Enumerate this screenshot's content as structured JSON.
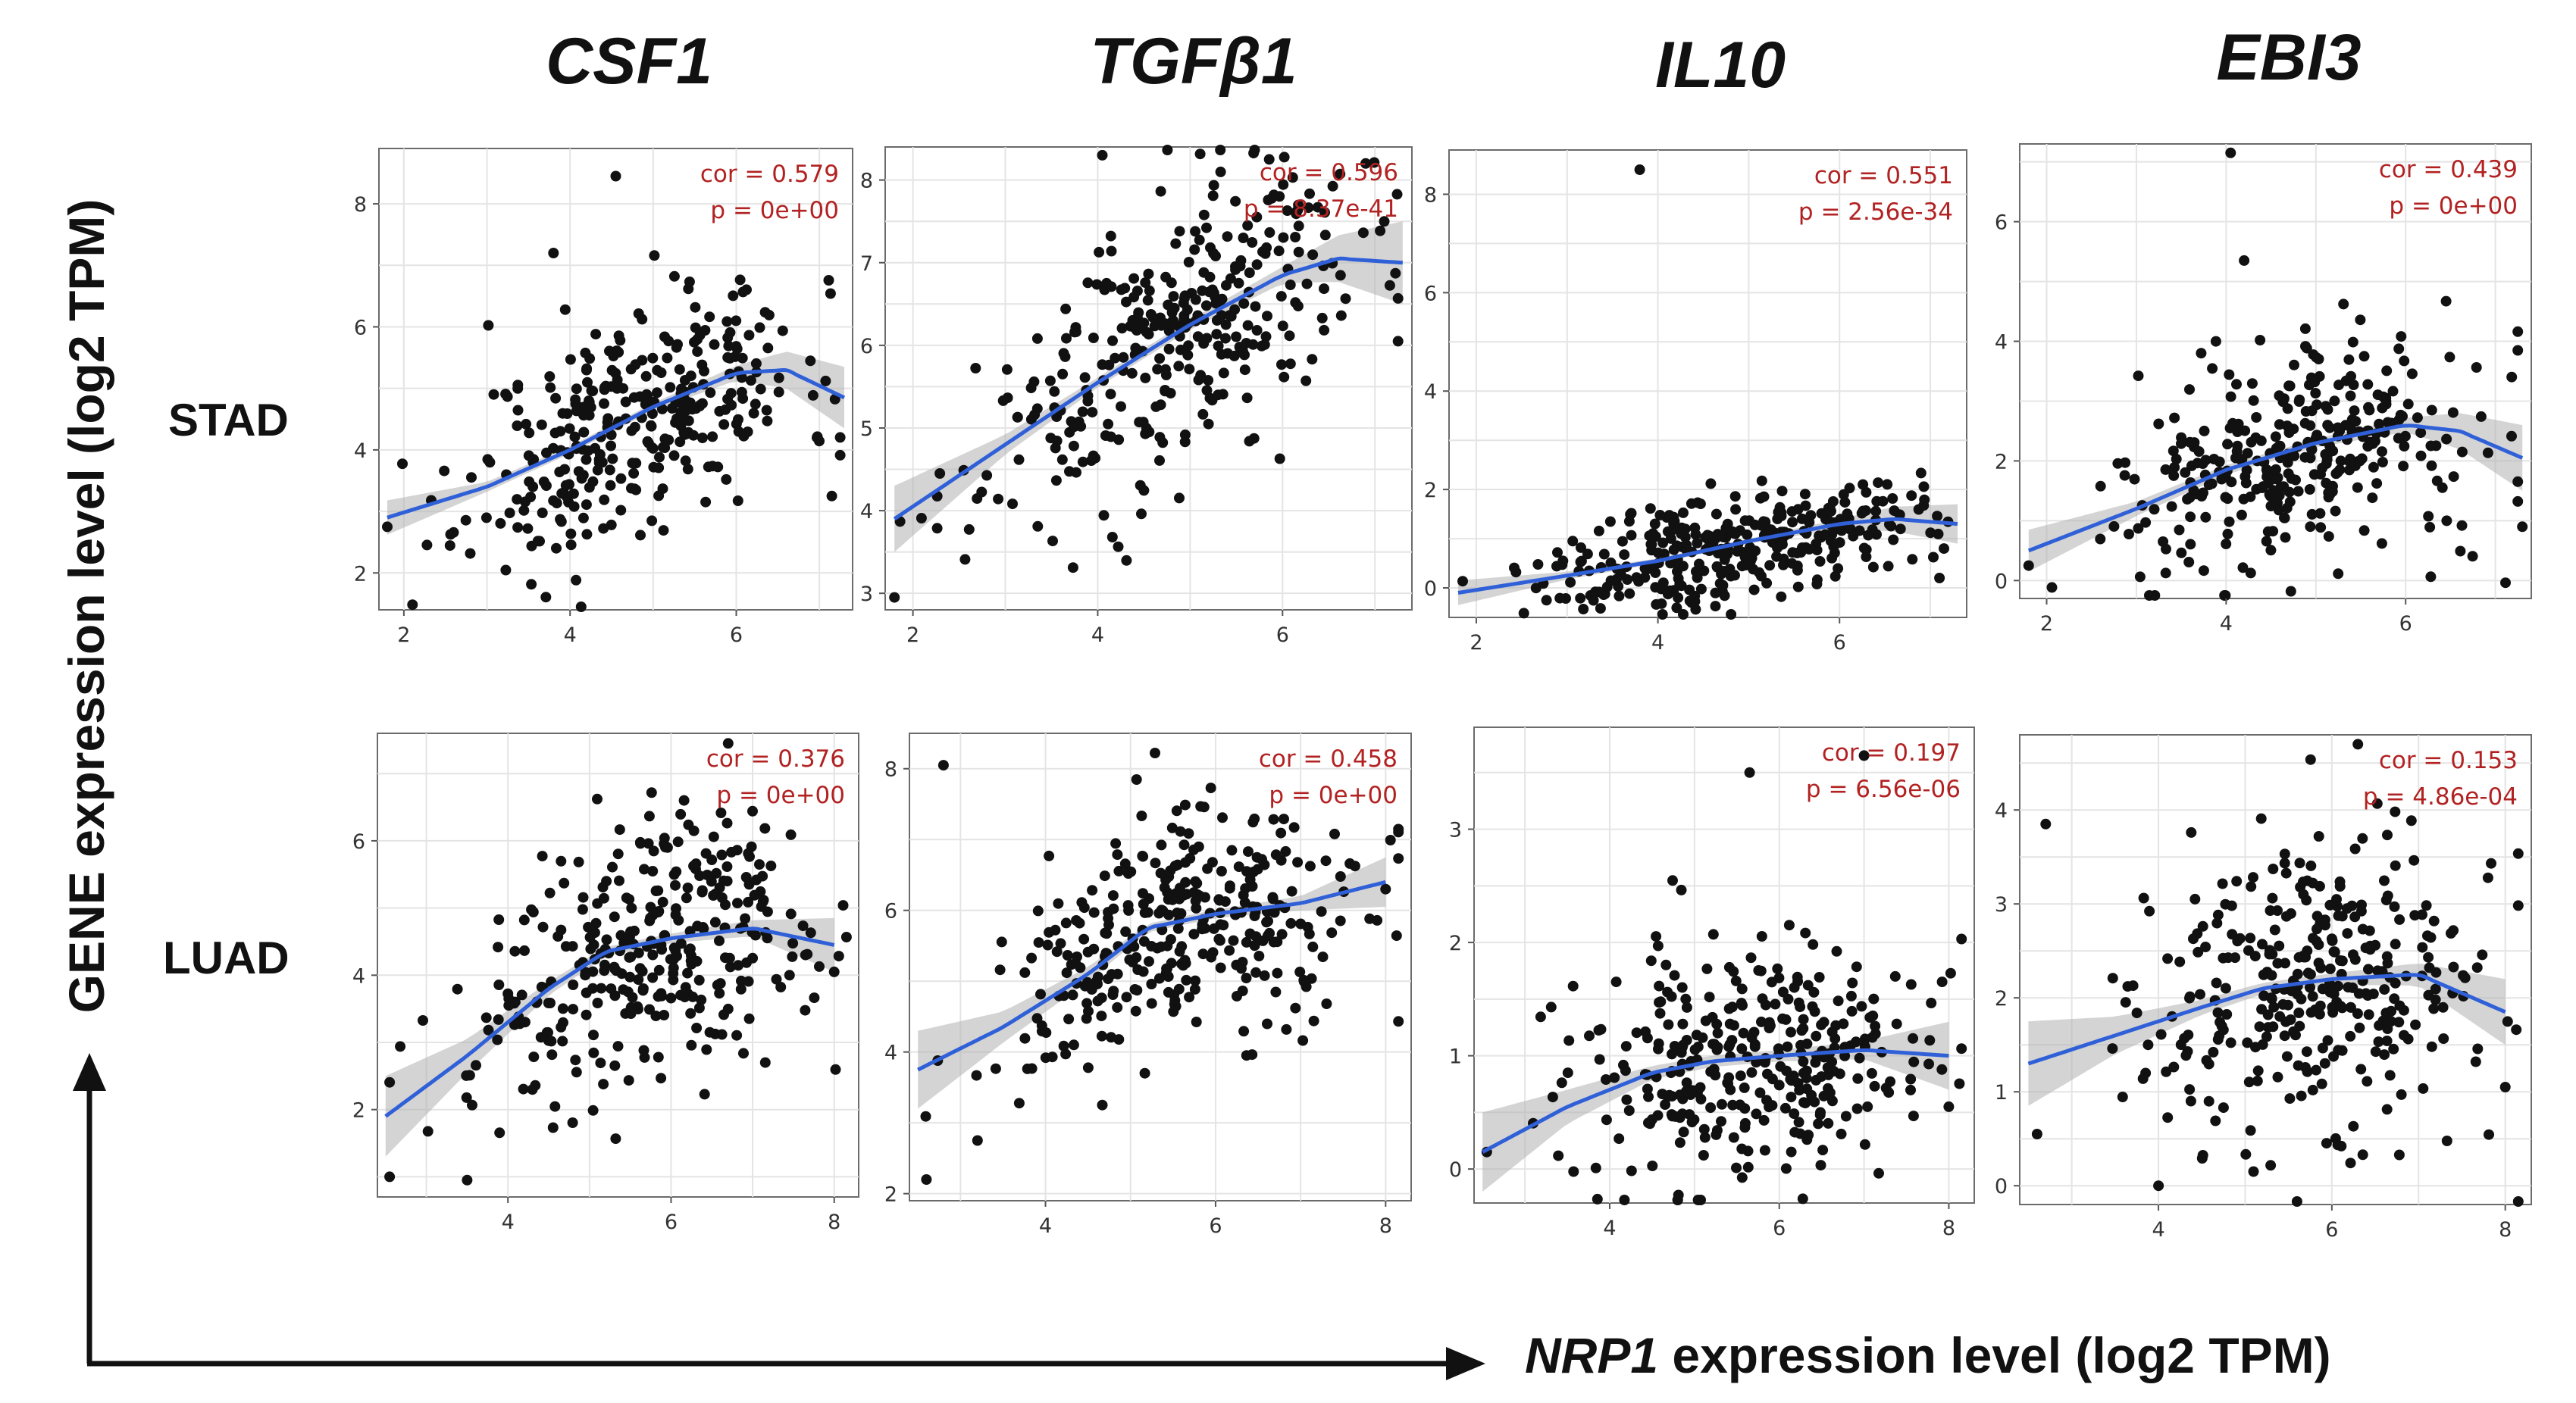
{
  "figure": {
    "x_axis_title_gene": "NRP1",
    "x_axis_title_rest": " expression level (log2 TPM)",
    "y_axis_title": "GENE expression level (log2 TPM)",
    "genes": [
      "CSF1",
      "TGFβ1",
      "IL10",
      "EBI3"
    ],
    "rows": [
      "STAD",
      "LUAD"
    ]
  },
  "chart_data": [
    {
      "type": "scatter",
      "title": "CSF1",
      "row": "STAD",
      "xlim": [
        1.7,
        7.4
      ],
      "ylim": [
        1.4,
        8.9
      ],
      "xticks": [
        2,
        4,
        6
      ],
      "yticks": [
        2,
        4,
        6,
        8
      ],
      "cor_text": "cor = 0.579",
      "p_text": "p = 0e+00",
      "cor": 0.579,
      "x_center": 4.8,
      "x_sd": 1.0,
      "noise": 0.9,
      "n": 330,
      "seed": 11,
      "fit_x": [
        1.8,
        3.0,
        4.0,
        5.0,
        6.0,
        6.6,
        7.3
      ],
      "fit_y": [
        2.9,
        3.4,
        4.0,
        4.7,
        5.25,
        5.3,
        4.85
      ],
      "band": [
        0.28,
        0.08,
        0.06,
        0.06,
        0.12,
        0.3,
        0.5
      ],
      "outliers": [
        [
          4.55,
          8.45
        ],
        [
          3.8,
          7.2
        ],
        [
          1.8,
          2.75
        ],
        [
          7.15,
          3.25
        ]
      ]
    },
    {
      "type": "scatter",
      "title": "TGFβ1",
      "row": "STAD",
      "xlim": [
        1.7,
        7.4
      ],
      "ylim": [
        2.8,
        8.4
      ],
      "xticks": [
        2,
        4,
        6
      ],
      "yticks": [
        3,
        4,
        5,
        6,
        7,
        8
      ],
      "cor_text": "cor = 0.596",
      "p_text": "p = 8.37e-41",
      "cor": 0.596,
      "x_center": 4.8,
      "x_sd": 1.0,
      "noise": 0.8,
      "n": 330,
      "seed": 23,
      "fit_x": [
        1.8,
        3.0,
        4.0,
        5.0,
        6.0,
        6.6,
        7.3
      ],
      "fit_y": [
        3.9,
        4.8,
        5.55,
        6.25,
        6.85,
        7.05,
        7.0
      ],
      "band": [
        0.4,
        0.12,
        0.06,
        0.06,
        0.1,
        0.28,
        0.5
      ],
      "outliers": [
        [
          4.05,
          8.3
        ],
        [
          1.8,
          2.95
        ],
        [
          7.25,
          6.05
        ],
        [
          6.9,
          8.2
        ]
      ]
    },
    {
      "type": "scatter",
      "title": "IL10",
      "row": "STAD",
      "xlim": [
        1.7,
        7.4
      ],
      "ylim": [
        -0.6,
        8.9
      ],
      "xticks": [
        2,
        4,
        6
      ],
      "yticks": [
        0,
        2,
        4,
        6,
        8
      ],
      "cor_text": "cor = 0.551",
      "p_text": "p = 2.56e-34",
      "cor": 0.551,
      "x_center": 4.8,
      "x_sd": 1.0,
      "noise": 0.55,
      "n": 330,
      "seed": 37,
      "fit_x": [
        1.8,
        3.0,
        4.0,
        5.0,
        6.0,
        6.6,
        7.3
      ],
      "fit_y": [
        -0.1,
        0.25,
        0.55,
        0.95,
        1.3,
        1.4,
        1.3
      ],
      "band": [
        0.25,
        0.08,
        0.05,
        0.05,
        0.1,
        0.25,
        0.4
      ],
      "outliers": [
        [
          3.8,
          8.5
        ],
        [
          7.15,
          0.8
        ],
        [
          7.1,
          0.2
        ]
      ]
    },
    {
      "type": "scatter",
      "title": "EBI3",
      "row": "STAD",
      "xlim": [
        1.7,
        7.4
      ],
      "ylim": [
        -0.3,
        7.3
      ],
      "xticks": [
        2,
        4,
        6
      ],
      "yticks": [
        0,
        2,
        4,
        6
      ],
      "cor_text": "cor = 0.439",
      "p_text": "p = 0e+00",
      "cor": 0.439,
      "x_center": 4.8,
      "x_sd": 1.0,
      "noise": 0.9,
      "n": 330,
      "seed": 49,
      "fit_x": [
        1.8,
        3.0,
        4.0,
        5.0,
        6.0,
        6.6,
        7.3
      ],
      "fit_y": [
        0.5,
        1.2,
        1.85,
        2.3,
        2.6,
        2.5,
        2.05
      ],
      "band": [
        0.35,
        0.12,
        0.08,
        0.07,
        0.12,
        0.3,
        0.55
      ],
      "outliers": [
        [
          4.05,
          7.15
        ],
        [
          4.2,
          5.35
        ],
        [
          7.3,
          0.9
        ],
        [
          1.8,
          0.25
        ]
      ]
    },
    {
      "type": "scatter",
      "title": "CSF1",
      "row": "LUAD",
      "xlim": [
        2.4,
        8.3
      ],
      "ylim": [
        0.7,
        7.6
      ],
      "xticks": [
        4,
        6,
        8
      ],
      "yticks": [
        2,
        4,
        6
      ],
      "cor_text": "cor = 0.376",
      "p_text": "p = 0e+00",
      "cor": 0.376,
      "x_center": 5.7,
      "x_sd": 1.05,
      "noise": 0.95,
      "n": 330,
      "seed": 61,
      "fit_x": [
        2.5,
        3.5,
        4.5,
        5.2,
        6.0,
        7.0,
        8.0
      ],
      "fit_y": [
        1.9,
        2.8,
        3.8,
        4.35,
        4.55,
        4.7,
        4.45
      ],
      "band": [
        0.6,
        0.25,
        0.1,
        0.07,
        0.07,
        0.12,
        0.4
      ],
      "outliers": [
        [
          2.55,
          1.0
        ],
        [
          3.5,
          0.95
        ],
        [
          6.7,
          7.45
        ],
        [
          8.0,
          4.05
        ]
      ]
    },
    {
      "type": "scatter",
      "title": "TGFβ1",
      "row": "LUAD",
      "xlim": [
        2.4,
        8.3
      ],
      "ylim": [
        1.9,
        8.5
      ],
      "xticks": [
        4,
        6,
        8
      ],
      "yticks": [
        2,
        4,
        6,
        8
      ],
      "cor_text": "cor = 0.458",
      "p_text": "p = 0e+00",
      "cor": 0.458,
      "x_center": 5.7,
      "x_sd": 1.05,
      "noise": 0.8,
      "n": 330,
      "seed": 73,
      "fit_x": [
        2.5,
        3.5,
        4.5,
        5.2,
        6.0,
        7.0,
        8.0
      ],
      "fit_y": [
        3.75,
        4.35,
        5.1,
        5.75,
        5.95,
        6.1,
        6.4
      ],
      "band": [
        0.55,
        0.22,
        0.1,
        0.06,
        0.06,
        0.1,
        0.35
      ],
      "outliers": [
        [
          2.8,
          8.05
        ],
        [
          2.6,
          2.2
        ],
        [
          3.2,
          2.75
        ],
        [
          8.0,
          6.3
        ]
      ]
    },
    {
      "type": "scatter",
      "title": "IL10",
      "row": "LUAD",
      "xlim": [
        2.4,
        8.3
      ],
      "ylim": [
        -0.3,
        3.9
      ],
      "xticks": [
        4,
        6,
        8
      ],
      "yticks": [
        0,
        1,
        2,
        3
      ],
      "cor_text": "cor = 0.197",
      "p_text": "p = 6.56e-06",
      "cor": 0.197,
      "x_center": 5.7,
      "x_sd": 1.05,
      "noise": 0.55,
      "n": 330,
      "seed": 89,
      "fit_x": [
        2.5,
        3.5,
        4.5,
        5.2,
        6.0,
        7.0,
        8.0
      ],
      "fit_y": [
        0.15,
        0.55,
        0.85,
        0.95,
        1.0,
        1.05,
        1.0
      ],
      "band": [
        0.35,
        0.15,
        0.06,
        0.05,
        0.05,
        0.08,
        0.3
      ],
      "outliers": [
        [
          7.0,
          3.65
        ],
        [
          5.65,
          3.5
        ],
        [
          2.55,
          0.15
        ],
        [
          8.0,
          0.55
        ]
      ]
    },
    {
      "type": "scatter",
      "title": "EBI3",
      "row": "LUAD",
      "xlim": [
        2.4,
        8.3
      ],
      "ylim": [
        -0.2,
        4.8
      ],
      "xticks": [
        4,
        6,
        8
      ],
      "yticks": [
        0,
        1,
        2,
        3,
        4
      ],
      "cor_text": "cor = 0.153",
      "p_text": "p = 4.86e-04",
      "cor": 0.153,
      "x_center": 5.7,
      "x_sd": 1.05,
      "noise": 0.85,
      "n": 330,
      "seed": 97,
      "fit_x": [
        2.5,
        3.5,
        4.5,
        5.2,
        6.0,
        7.0,
        8.0
      ],
      "fit_y": [
        1.3,
        1.6,
        1.9,
        2.1,
        2.2,
        2.25,
        1.85
      ],
      "band": [
        0.45,
        0.2,
        0.08,
        0.06,
        0.06,
        0.12,
        0.35
      ],
      "outliers": [
        [
          6.3,
          4.7
        ],
        [
          2.7,
          3.85
        ],
        [
          4.0,
          0.0
        ],
        [
          8.0,
          1.05
        ],
        [
          2.6,
          0.55
        ]
      ]
    }
  ]
}
